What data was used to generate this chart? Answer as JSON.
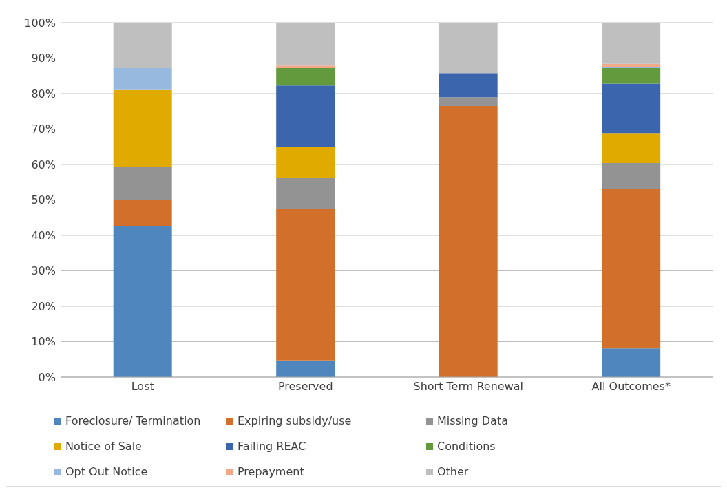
{
  "chart_data": {
    "type": "bar",
    "stacked": true,
    "categories": [
      "Lost",
      "Preserved",
      "Short Term Renewal",
      "All Outcomes*"
    ],
    "series": [
      {
        "name": "Foreclosure/ Termination",
        "color": "#4e86bd",
        "values": [
          42.6,
          4.7,
          0,
          8.1
        ]
      },
      {
        "name": "Expiring subsidy/use",
        "color": "#d2702b",
        "values": [
          7.5,
          42.7,
          76.5,
          44.9
        ]
      },
      {
        "name": "Missing Data",
        "color": "#939393",
        "values": [
          9.3,
          8.9,
          2.5,
          7.4
        ]
      },
      {
        "name": "Notice of Sale",
        "color": "#e0aa00",
        "values": [
          21.6,
          8.6,
          0,
          8.3
        ]
      },
      {
        "name": "Failing REAC",
        "color": "#3b65ad",
        "values": [
          0,
          17.4,
          6.8,
          14.1
        ]
      },
      {
        "name": "Conditions",
        "color": "#639a3d",
        "values": [
          0,
          4.9,
          0,
          4.4
        ]
      },
      {
        "name": "Opt Out Notice",
        "color": "#97b9e0",
        "values": [
          6.2,
          0,
          0,
          0.3
        ]
      },
      {
        "name": "Prepayment",
        "color": "#f2a98a",
        "values": [
          0,
          0.7,
          0,
          0.9
        ]
      },
      {
        "name": "Other",
        "color": "#bfbfbf",
        "values": [
          12.8,
          12.1,
          14.2,
          11.6
        ]
      }
    ],
    "ylim": [
      0,
      100
    ],
    "yticks": [
      {
        "value": 0,
        "label": "0%"
      },
      {
        "value": 10,
        "label": "10%"
      },
      {
        "value": 20,
        "label": "20%"
      },
      {
        "value": 30,
        "label": "30%"
      },
      {
        "value": 40,
        "label": "40%"
      },
      {
        "value": 50,
        "label": "50%"
      },
      {
        "value": 60,
        "label": "60%"
      },
      {
        "value": 70,
        "label": "70%"
      },
      {
        "value": 80,
        "label": "80%"
      },
      {
        "value": 90,
        "label": "90%"
      },
      {
        "value": 100,
        "label": "100%"
      }
    ],
    "grid": "y",
    "legend": "bottom"
  }
}
